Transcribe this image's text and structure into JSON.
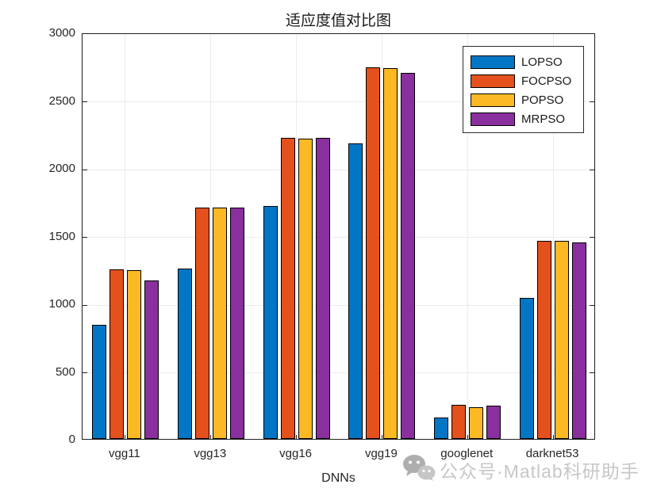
{
  "title": "适应度值对比图",
  "watermark": {
    "icon": "wechat-icon",
    "text": "公众号·Matlab科研助手"
  },
  "chart_data": {
    "type": "bar",
    "title": "适应度值对比图",
    "xlabel": "DNNs",
    "ylabel": "",
    "categories": [
      "vgg11",
      "vgg13",
      "vgg16",
      "vgg19",
      "googlenet",
      "darknet53"
    ],
    "series": [
      {
        "name": "LOPSO",
        "color": "#0076C5",
        "values": [
          845,
          1260,
          1720,
          2180,
          160,
          1040
        ]
      },
      {
        "name": "FOCPSO",
        "color": "#E4511C",
        "values": [
          1250,
          1710,
          2225,
          2740,
          250,
          1460
        ]
      },
      {
        "name": "POPSO",
        "color": "#FCB923",
        "values": [
          1245,
          1705,
          2215,
          2735,
          235,
          1460
        ]
      },
      {
        "name": "MRPSO",
        "color": "#8A2F9E",
        "values": [
          1170,
          1710,
          2225,
          2700,
          245,
          1450
        ]
      }
    ],
    "ylim": [
      0,
      3000
    ],
    "yticks": [
      0,
      500,
      1000,
      1500,
      2000,
      2500,
      3000
    ],
    "grid": true,
    "legend_position": "top-right",
    "bar_edge_color": "#000000"
  }
}
